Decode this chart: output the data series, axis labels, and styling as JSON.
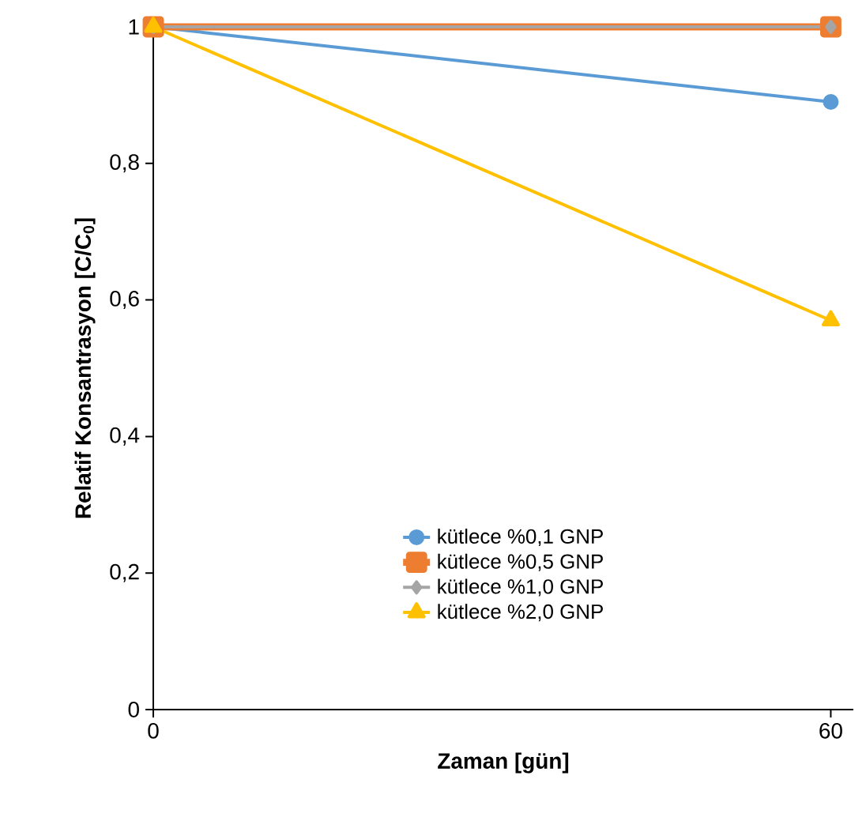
{
  "chart_data": {
    "type": "line",
    "xlabel": "Zaman [gün]",
    "ylabel": "Relatif Konsantrasyon [C/C$_{0}$]",
    "x": [
      0,
      60
    ],
    "xlim": [
      0,
      62
    ],
    "xticks": [
      0,
      60
    ],
    "ylim": [
      0,
      1
    ],
    "yticks": [
      0,
      {
        "value": 0.2,
        "label": "0,2"
      },
      {
        "value": 0.4,
        "label": "0,4"
      },
      {
        "value": 0.6,
        "label": "0,6"
      },
      {
        "value": 0.8,
        "label": "0,8"
      },
      1
    ],
    "series": [
      {
        "name": "kütlece %0,1 GNP",
        "color": "#5b9bd5",
        "marker": "circle",
        "values": [
          1,
          0.89
        ]
      },
      {
        "name": "kütlece %0,5 GNP",
        "color": "#ed7d31",
        "marker": "square",
        "values": [
          1,
          1
        ]
      },
      {
        "name": "kütlece %1,0 GNP",
        "color": "#a5a5a5",
        "marker": "diamond",
        "values": [
          1,
          1
        ]
      },
      {
        "name": "kütlece %2,0 GNP",
        "color": "#ffc000",
        "marker": "triangle",
        "values": [
          1,
          0.57
        ]
      }
    ],
    "grid": false,
    "legend": "bottom"
  }
}
